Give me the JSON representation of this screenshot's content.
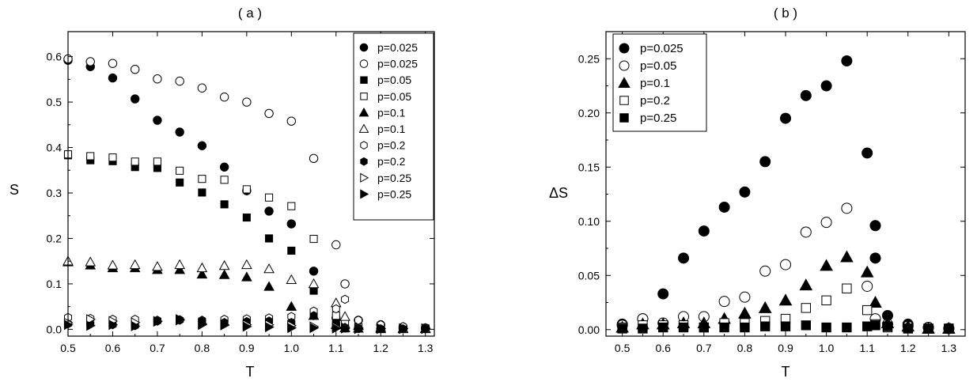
{
  "chart_data": [
    {
      "type": "scatter",
      "title": "( a )",
      "xlabel": "T",
      "ylabel": "S",
      "xlim": [
        0.5,
        1.32
      ],
      "ylim": [
        -0.015,
        0.655
      ],
      "xticks": [
        "0.5",
        "0.6",
        "0.7",
        "0.8",
        "0.9",
        "1.0",
        "1.1",
        "1.2",
        "1.3"
      ],
      "yticks": [
        "0.0",
        "0.1",
        "0.2",
        "0.3",
        "0.4",
        "0.5",
        "0.6"
      ],
      "legend_position": "top-right",
      "series": [
        {
          "name": "p=0.025",
          "marker": "circle",
          "filled": true,
          "x": [
            0.5,
            0.55,
            0.6,
            0.65,
            0.7,
            0.75,
            0.8,
            0.85,
            0.9,
            0.95,
            1.0,
            1.05,
            1.1,
            1.12,
            1.15,
            1.2,
            1.25,
            1.3
          ],
          "y": [
            0.592,
            0.578,
            0.553,
            0.507,
            0.46,
            0.434,
            0.404,
            0.357,
            0.305,
            0.26,
            0.232,
            0.128,
            0.025,
            0.003,
            0.002,
            0.002,
            0.002,
            0.002
          ]
        },
        {
          "name": "p=0.025",
          "marker": "circle",
          "filled": false,
          "x": [
            0.5,
            0.55,
            0.6,
            0.65,
            0.7,
            0.75,
            0.8,
            0.85,
            0.9,
            0.95,
            1.0,
            1.05,
            1.1,
            1.12,
            1.15,
            1.2,
            1.25,
            1.3
          ],
          "y": [
            0.595,
            0.589,
            0.585,
            0.572,
            0.551,
            0.546,
            0.531,
            0.511,
            0.5,
            0.475,
            0.458,
            0.376,
            0.186,
            0.1,
            0.02,
            0.01,
            0.005,
            0.003
          ]
        },
        {
          "name": "p=0.05",
          "marker": "square",
          "filled": true,
          "x": [
            0.5,
            0.55,
            0.6,
            0.65,
            0.7,
            0.75,
            0.8,
            0.85,
            0.9,
            0.95,
            1.0,
            1.05,
            1.1,
            1.12,
            1.15,
            1.2,
            1.25,
            1.3
          ],
          "y": [
            0.383,
            0.372,
            0.37,
            0.357,
            0.355,
            0.323,
            0.301,
            0.275,
            0.246,
            0.2,
            0.173,
            0.085,
            0.012,
            0.002,
            0.002,
            0.001,
            0.001,
            0.001
          ]
        },
        {
          "name": "p=0.05",
          "marker": "square",
          "filled": false,
          "x": [
            0.5,
            0.55,
            0.6,
            0.65,
            0.7,
            0.75,
            0.8,
            0.85,
            0.9,
            0.95,
            1.0,
            1.05,
            1.1,
            1.12,
            1.15,
            1.2,
            1.25,
            1.3
          ],
          "y": [
            0.385,
            0.381,
            0.378,
            0.369,
            0.369,
            0.349,
            0.331,
            0.329,
            0.308,
            0.29,
            0.271,
            0.199,
            0.03,
            0.015,
            0.005,
            0.003,
            0.002,
            0.002
          ]
        },
        {
          "name": "p=0.1",
          "marker": "triangle-up",
          "filled": true,
          "x": [
            0.5,
            0.55,
            0.6,
            0.65,
            0.7,
            0.75,
            0.8,
            0.85,
            0.9,
            0.95,
            1.0,
            1.05,
            1.1,
            1.12,
            1.15,
            1.2,
            1.25,
            1.3
          ],
          "y": [
            0.148,
            0.141,
            0.135,
            0.135,
            0.131,
            0.131,
            0.121,
            0.12,
            0.115,
            0.094,
            0.05,
            0.03,
            0.01,
            0.003,
            0.002,
            0.001,
            0.001,
            0.001
          ]
        },
        {
          "name": "p=0.1",
          "marker": "triangle-up",
          "filled": false,
          "x": [
            0.5,
            0.55,
            0.6,
            0.65,
            0.7,
            0.75,
            0.8,
            0.85,
            0.9,
            0.95,
            1.0,
            1.05,
            1.1,
            1.12,
            1.15,
            1.2,
            1.25,
            1.3
          ],
          "y": [
            0.15,
            0.148,
            0.141,
            0.142,
            0.138,
            0.142,
            0.135,
            0.14,
            0.142,
            0.133,
            0.109,
            0.1,
            0.058,
            0.028,
            0.008,
            0.004,
            0.002,
            0.002
          ]
        },
        {
          "name": "p=0.2",
          "marker": "hexagon",
          "filled": false,
          "x": [
            0.5,
            0.55,
            0.6,
            0.65,
            0.7,
            0.75,
            0.8,
            0.85,
            0.9,
            0.95,
            1.0,
            1.05,
            1.1,
            1.12,
            1.15,
            1.2,
            1.25,
            1.3
          ],
          "y": [
            0.026,
            0.024,
            0.022,
            0.022,
            0.02,
            0.021,
            0.02,
            0.022,
            0.023,
            0.025,
            0.028,
            0.04,
            0.045,
            0.066,
            0.02,
            0.01,
            0.006,
            0.003
          ]
        },
        {
          "name": "p=0.2",
          "marker": "hexagon",
          "filled": true,
          "x": [
            0.5,
            0.55,
            0.6,
            0.65,
            0.7,
            0.75,
            0.8,
            0.85,
            0.9,
            0.95,
            1.0,
            1.05,
            1.1,
            1.12,
            1.15,
            1.2,
            1.25,
            1.3
          ],
          "y": [
            0.012,
            0.012,
            0.01,
            0.008,
            0.018,
            0.02,
            0.018,
            0.015,
            0.017,
            0.018,
            0.015,
            0.03,
            0.01,
            0.004,
            0.002,
            0.001,
            0.001,
            0.001
          ]
        },
        {
          "name": "p=0.25",
          "marker": "triangle-right",
          "filled": false,
          "x": [
            0.5,
            0.55,
            0.6,
            0.65,
            0.7,
            0.75,
            0.8,
            0.85,
            0.9,
            0.95,
            1.0,
            1.05,
            1.1,
            1.12,
            1.15,
            1.2,
            1.25,
            1.3
          ],
          "y": [
            0.014,
            0.022,
            0.018,
            0.015,
            0.018,
            0.02,
            0.01,
            0.01,
            0.01,
            0.01,
            0.008,
            0.006,
            0.005,
            0.004,
            0.003,
            0.002,
            0.002,
            0.002
          ]
        },
        {
          "name": "p=0.25",
          "marker": "triangle-right",
          "filled": true,
          "x": [
            0.5,
            0.55,
            0.6,
            0.65,
            0.7,
            0.75,
            0.8,
            0.85,
            0.9,
            0.95,
            1.0,
            1.05,
            1.1,
            1.12,
            1.15,
            1.2,
            1.25,
            1.3
          ],
          "y": [
            0.01,
            0.008,
            0.01,
            0.007,
            0.017,
            0.022,
            0.012,
            0.009,
            0.006,
            0.005,
            0.003,
            0.003,
            0.002,
            0.002,
            0.001,
            0.001,
            0.001,
            0.001
          ]
        }
      ]
    },
    {
      "type": "scatter",
      "title": "( b )",
      "xlabel": "T",
      "ylabel": "ΔS",
      "xlim": [
        0.46,
        1.34
      ],
      "ylim": [
        -0.006,
        0.275
      ],
      "xticks": [
        "0.5",
        "0.6",
        "0.7",
        "0.8",
        "0.9",
        "1.0",
        "1.1",
        "1.2",
        "1.3"
      ],
      "yticks": [
        "0.00",
        "0.05",
        "0.10",
        "0.15",
        "0.20",
        "0.25"
      ],
      "legend_position": "top-left",
      "series": [
        {
          "name": "p=0.025",
          "marker": "circle",
          "filled": true,
          "x": [
            0.5,
            0.55,
            0.6,
            0.65,
            0.7,
            0.75,
            0.8,
            0.85,
            0.9,
            0.95,
            1.0,
            1.05,
            1.1,
            1.12,
            1.12,
            1.15,
            1.2,
            1.25,
            1.3
          ],
          "y": [
            0.005,
            0.01,
            0.033,
            0.066,
            0.091,
            0.113,
            0.127,
            0.155,
            0.195,
            0.216,
            0.225,
            0.248,
            0.163,
            0.096,
            0.066,
            0.013,
            0.005,
            0.002,
            0.001
          ]
        },
        {
          "name": "p=0.05",
          "marker": "circle",
          "filled": false,
          "x": [
            0.5,
            0.55,
            0.6,
            0.65,
            0.7,
            0.75,
            0.8,
            0.85,
            0.9,
            0.95,
            1.0,
            1.05,
            1.1,
            1.12,
            1.15,
            1.2,
            1.25,
            1.3
          ],
          "y": [
            0.004,
            0.01,
            0.006,
            0.012,
            0.012,
            0.026,
            0.03,
            0.054,
            0.06,
            0.09,
            0.099,
            0.112,
            0.04,
            0.01,
            0.005,
            0.003,
            0.002,
            0.001
          ]
        },
        {
          "name": "p=0.1",
          "marker": "triangle-up",
          "filled": true,
          "x": [
            0.5,
            0.55,
            0.6,
            0.65,
            0.7,
            0.75,
            0.8,
            0.85,
            0.9,
            0.95,
            1.0,
            1.05,
            1.1,
            1.12,
            1.15,
            1.2,
            1.25,
            1.3
          ],
          "y": [
            0.002,
            0.005,
            0.005,
            0.006,
            0.006,
            0.01,
            0.015,
            0.02,
            0.027,
            0.041,
            0.059,
            0.067,
            0.053,
            0.025,
            0.006,
            0.003,
            0.001,
            0.001
          ]
        },
        {
          "name": "p=0.2",
          "marker": "square",
          "filled": false,
          "x": [
            0.5,
            0.55,
            0.6,
            0.65,
            0.7,
            0.75,
            0.8,
            0.85,
            0.9,
            0.95,
            1.0,
            1.05,
            1.1,
            1.12,
            1.15,
            1.2,
            1.25,
            1.3
          ],
          "y": [
            0.002,
            0.004,
            0.004,
            0.004,
            0.002,
            0.006,
            0.006,
            0.008,
            0.01,
            0.02,
            0.027,
            0.038,
            0.018,
            0.005,
            0.002,
            0.001,
            0.001,
            0.001
          ]
        },
        {
          "name": "p=0.25",
          "marker": "square",
          "filled": true,
          "x": [
            0.5,
            0.55,
            0.6,
            0.65,
            0.7,
            0.75,
            0.8,
            0.85,
            0.9,
            0.95,
            1.0,
            1.05,
            1.1,
            1.12,
            1.15,
            1.2,
            1.25,
            1.3
          ],
          "y": [
            0.001,
            0.001,
            0.002,
            0.002,
            0.002,
            0.002,
            0.002,
            0.003,
            0.003,
            0.004,
            0.002,
            0.002,
            0.003,
            0.004,
            0.003,
            0.001,
            0.001,
            0.001
          ]
        }
      ]
    }
  ]
}
